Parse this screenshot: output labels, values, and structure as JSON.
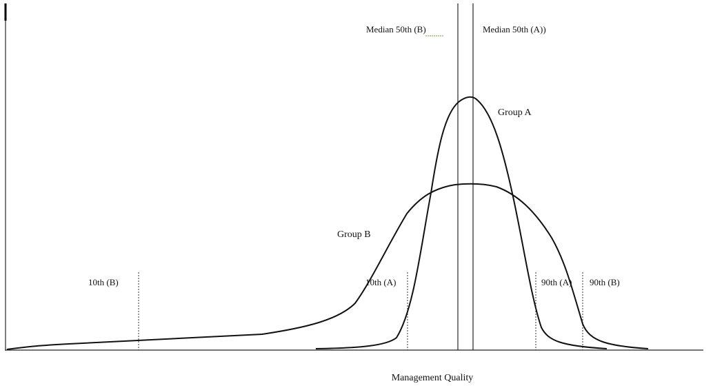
{
  "labels": {
    "median_b": "Median 50th (B)",
    "median_a": "Median 50th (A))",
    "group_a": "Group A",
    "group_b": "Group B",
    "p10_b": "10th (B)",
    "p10_a": "10th (A)",
    "p90_a": "90th (A)",
    "p90_b": "90th (B)",
    "x_axis": "Management Quality"
  }
}
